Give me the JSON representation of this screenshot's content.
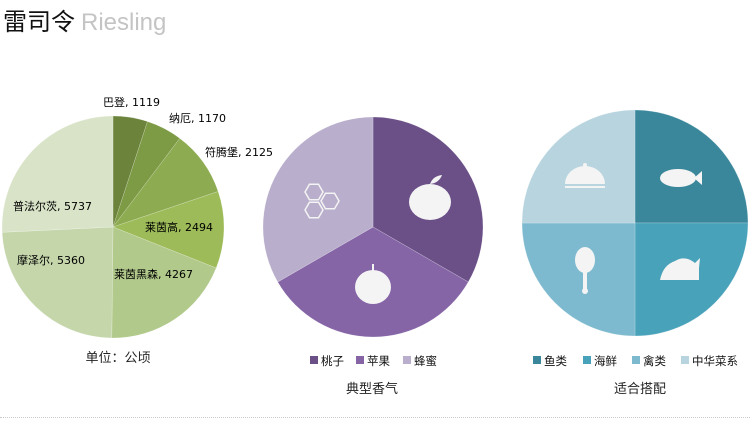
{
  "header": {
    "title_cn": "雷司令",
    "title_en": "Riesling"
  },
  "chart_data": [
    {
      "type": "pie",
      "caption": "单位：公顷",
      "slices": [
        {
          "label": "巴登",
          "value": 1119,
          "color": "#6b833b"
        },
        {
          "label": "纳厄",
          "value": 1170,
          "color": "#7d9a45"
        },
        {
          "label": "符腾堡",
          "value": 2125,
          "color": "#8dab51"
        },
        {
          "label": "莱茵高",
          "value": 2494,
          "color": "#9dbb59"
        },
        {
          "label": "莱茵黑森",
          "value": 4267,
          "color": "#b1c98a"
        },
        {
          "label": "摩泽尔",
          "value": 5360,
          "color": "#c5d6ab"
        },
        {
          "label": "普法尔茨",
          "value": 5737,
          "color": "#d9e3c8"
        }
      ]
    },
    {
      "type": "pie",
      "caption": "典型香气",
      "slices": [
        {
          "label": "桃子",
          "value": 1,
          "color": "#6b5088",
          "icon": "peach-icon"
        },
        {
          "label": "苹果",
          "value": 1,
          "color": "#8565a6",
          "icon": "apple-icon"
        },
        {
          "label": "蜂蜜",
          "value": 1,
          "color": "#b9aecb",
          "icon": "honeycomb-icon"
        }
      ]
    },
    {
      "type": "pie",
      "caption": "适合搭配",
      "slices": [
        {
          "label": "鱼类",
          "value": 1,
          "color": "#3a879b",
          "icon": "fish-icon"
        },
        {
          "label": "海鲜",
          "value": 1,
          "color": "#48a2ba",
          "icon": "roast-chicken-icon"
        },
        {
          "label": "禽类",
          "value": 1,
          "color": "#7ebacf",
          "icon": "drumstick-icon"
        },
        {
          "label": "中华菜系",
          "value": 1,
          "color": "#b7d4df",
          "icon": "cloche-icon"
        }
      ]
    }
  ]
}
